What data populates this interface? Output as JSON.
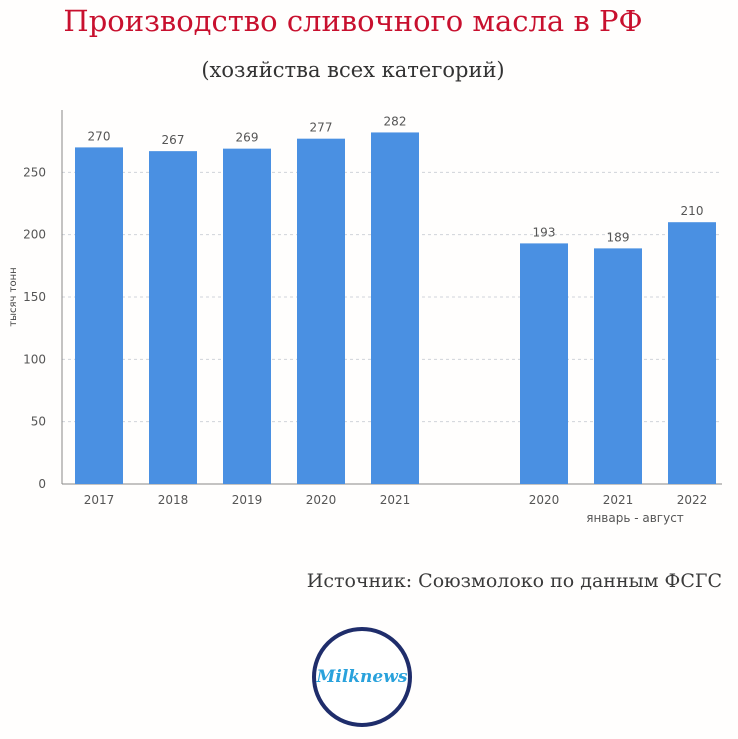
{
  "title": "Производство сливочного масла в РФ",
  "subtitle": "(хозяйства всех категорий)",
  "source": "Источник: Союзмолоко по данным ФСГС",
  "logo_text": "Milknews",
  "colors": {
    "bar": "#4a90e2",
    "title": "#c8102e",
    "grid": "#d0d4da"
  },
  "chart_data": {
    "type": "bar",
    "ylabel": "тысяч тонн",
    "ylim": [
      0,
      300
    ],
    "yticks": [
      0,
      50,
      100,
      150,
      200,
      250
    ],
    "grid": true,
    "groups": [
      {
        "label": "",
        "categories": [
          "2017",
          "2018",
          "2019",
          "2020",
          "2021"
        ],
        "values": [
          270,
          267,
          269,
          277,
          282
        ]
      },
      {
        "label": "январь - август",
        "categories": [
          "2020",
          "2021",
          "2022"
        ],
        "values": [
          193,
          189,
          210
        ]
      }
    ]
  }
}
